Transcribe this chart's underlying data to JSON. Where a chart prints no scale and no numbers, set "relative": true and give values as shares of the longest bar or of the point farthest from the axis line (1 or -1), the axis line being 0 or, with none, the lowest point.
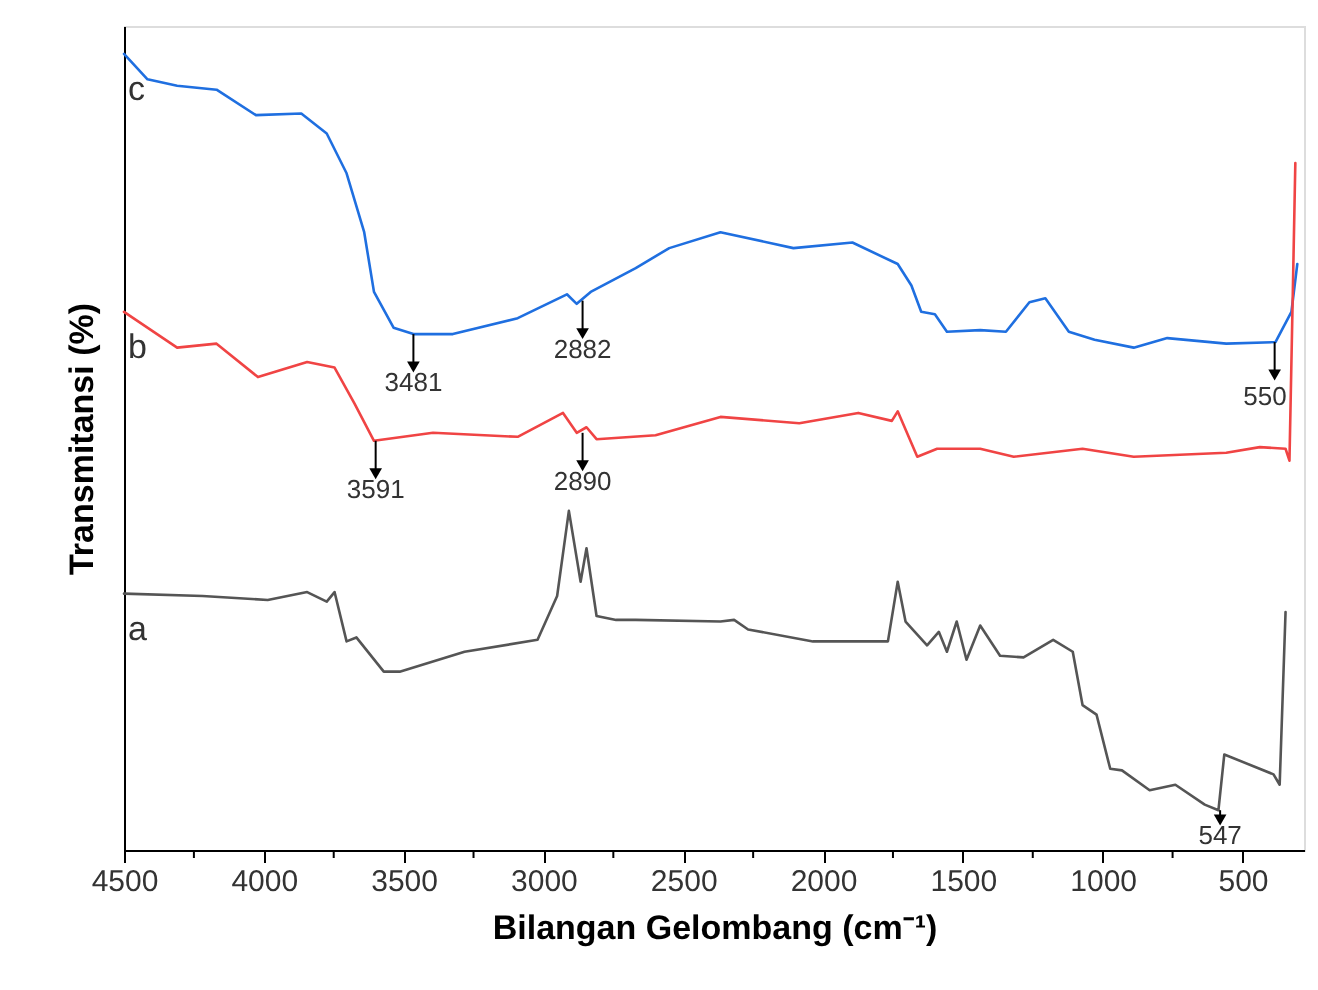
{
  "chart_data": {
    "type": "line",
    "xlabel": "Bilangan Gelombang (cm⁻¹)",
    "ylabel": "Transmitansi (%)",
    "relative": true,
    "xlim": [
      4500,
      280
    ],
    "xticks": [
      4500,
      {
        "value": 4250,
        "label": null
      },
      4000,
      {
        "value": 3750,
        "label": null
      },
      3500,
      {
        "value": 3250,
        "label": null
      },
      3000,
      {
        "value": 2750,
        "label": null
      },
      2500,
      {
        "value": 2250,
        "label": null
      },
      2000,
      {
        "value": 1750,
        "label": null
      },
      1500,
      {
        "value": 1250,
        "label": null
      },
      1000,
      {
        "value": 750,
        "label": null
      },
      500
    ],
    "tick_labels": "x",
    "grid": false,
    "marker": "none",
    "line_style": "solid",
    "series": [
      {
        "name": "c",
        "color": "#1f6fe0",
        "x": [
          4500,
          4416,
          4310,
          4169,
          4028,
          3866,
          3775,
          3704,
          3641,
          3606,
          3536,
          3465,
          3324,
          3092,
          2916,
          2881,
          2831,
          2670,
          2550,
          2367,
          2106,
          1895,
          1733,
          1684,
          1649,
          1600,
          1557,
          1438,
          1346,
          1262,
          1205,
          1121,
          1029,
          889,
          769,
          558,
          382,
          325,
          304
        ],
        "values": [
          1.0,
          0.968,
          0.96,
          0.955,
          0.923,
          0.925,
          0.9,
          0.85,
          0.776,
          0.701,
          0.656,
          0.648,
          0.648,
          0.668,
          0.698,
          0.686,
          0.701,
          0.731,
          0.756,
          0.776,
          0.756,
          0.763,
          0.736,
          0.709,
          0.676,
          0.673,
          0.651,
          0.653,
          0.651,
          0.688,
          0.693,
          0.651,
          0.641,
          0.631,
          0.643,
          0.636,
          0.638,
          0.676,
          0.736
        ]
      },
      {
        "name": "b",
        "color": "#f04444",
        "x": [
          4500,
          4310,
          4169,
          4021,
          3845,
          3747,
          3676,
          3606,
          3395,
          3092,
          2930,
          2881,
          2846,
          2810,
          2599,
          2367,
          2085,
          1874,
          1754,
          1733,
          1663,
          1592,
          1438,
          1318,
          1072,
          889,
          558,
          438,
          346,
          332,
          318,
          311
        ],
        "values": [
          0.676,
          0.631,
          0.636,
          0.594,
          0.613,
          0.606,
          0.561,
          0.514,
          0.524,
          0.519,
          0.549,
          0.524,
          0.531,
          0.516,
          0.521,
          0.544,
          0.536,
          0.549,
          0.539,
          0.551,
          0.494,
          0.504,
          0.504,
          0.494,
          0.504,
          0.494,
          0.499,
          0.506,
          0.504,
          0.489,
          0.736,
          0.863
        ]
      },
      {
        "name": "a",
        "color": "#555555",
        "x": [
          4500,
          4219,
          3986,
          3845,
          3775,
          3747,
          3704,
          3669,
          3571,
          3514,
          3282,
          3021,
          2951,
          2909,
          2867,
          2846,
          2810,
          2740,
          2670,
          2367,
          2318,
          2268,
          2036,
          1768,
          1733,
          1705,
          1628,
          1586,
          1557,
          1522,
          1487,
          1438,
          1367,
          1283,
          1177,
          1107,
          1072,
          1022,
          973,
          931,
          832,
          740,
          635,
          586,
          565,
          389,
          367,
          346
        ],
        "values": [
          0.322,
          0.319,
          0.314,
          0.324,
          0.312,
          0.324,
          0.262,
          0.267,
          0.224,
          0.224,
          0.249,
          0.264,
          0.319,
          0.426,
          0.337,
          0.379,
          0.294,
          0.289,
          0.289,
          0.287,
          0.289,
          0.277,
          0.262,
          0.262,
          0.337,
          0.287,
          0.257,
          0.274,
          0.249,
          0.287,
          0.239,
          0.282,
          0.244,
          0.242,
          0.264,
          0.249,
          0.182,
          0.17,
          0.102,
          0.1,
          0.075,
          0.082,
          0.057,
          0.05,
          0.12,
          0.095,
          0.082,
          0.299
        ]
      }
    ],
    "annotations": [
      {
        "text": "3481",
        "x": 3465,
        "y": 0.648
      },
      {
        "text": "2882",
        "x": 2860,
        "y": 0.69
      },
      {
        "text": "3591",
        "x": 3600,
        "y": 0.514
      },
      {
        "text": "2890",
        "x": 2860,
        "y": 0.524
      },
      {
        "text": "550",
        "x": 385,
        "y": 0.638
      },
      {
        "text": "547",
        "x": 580,
        "y": 0.05
      }
    ]
  }
}
